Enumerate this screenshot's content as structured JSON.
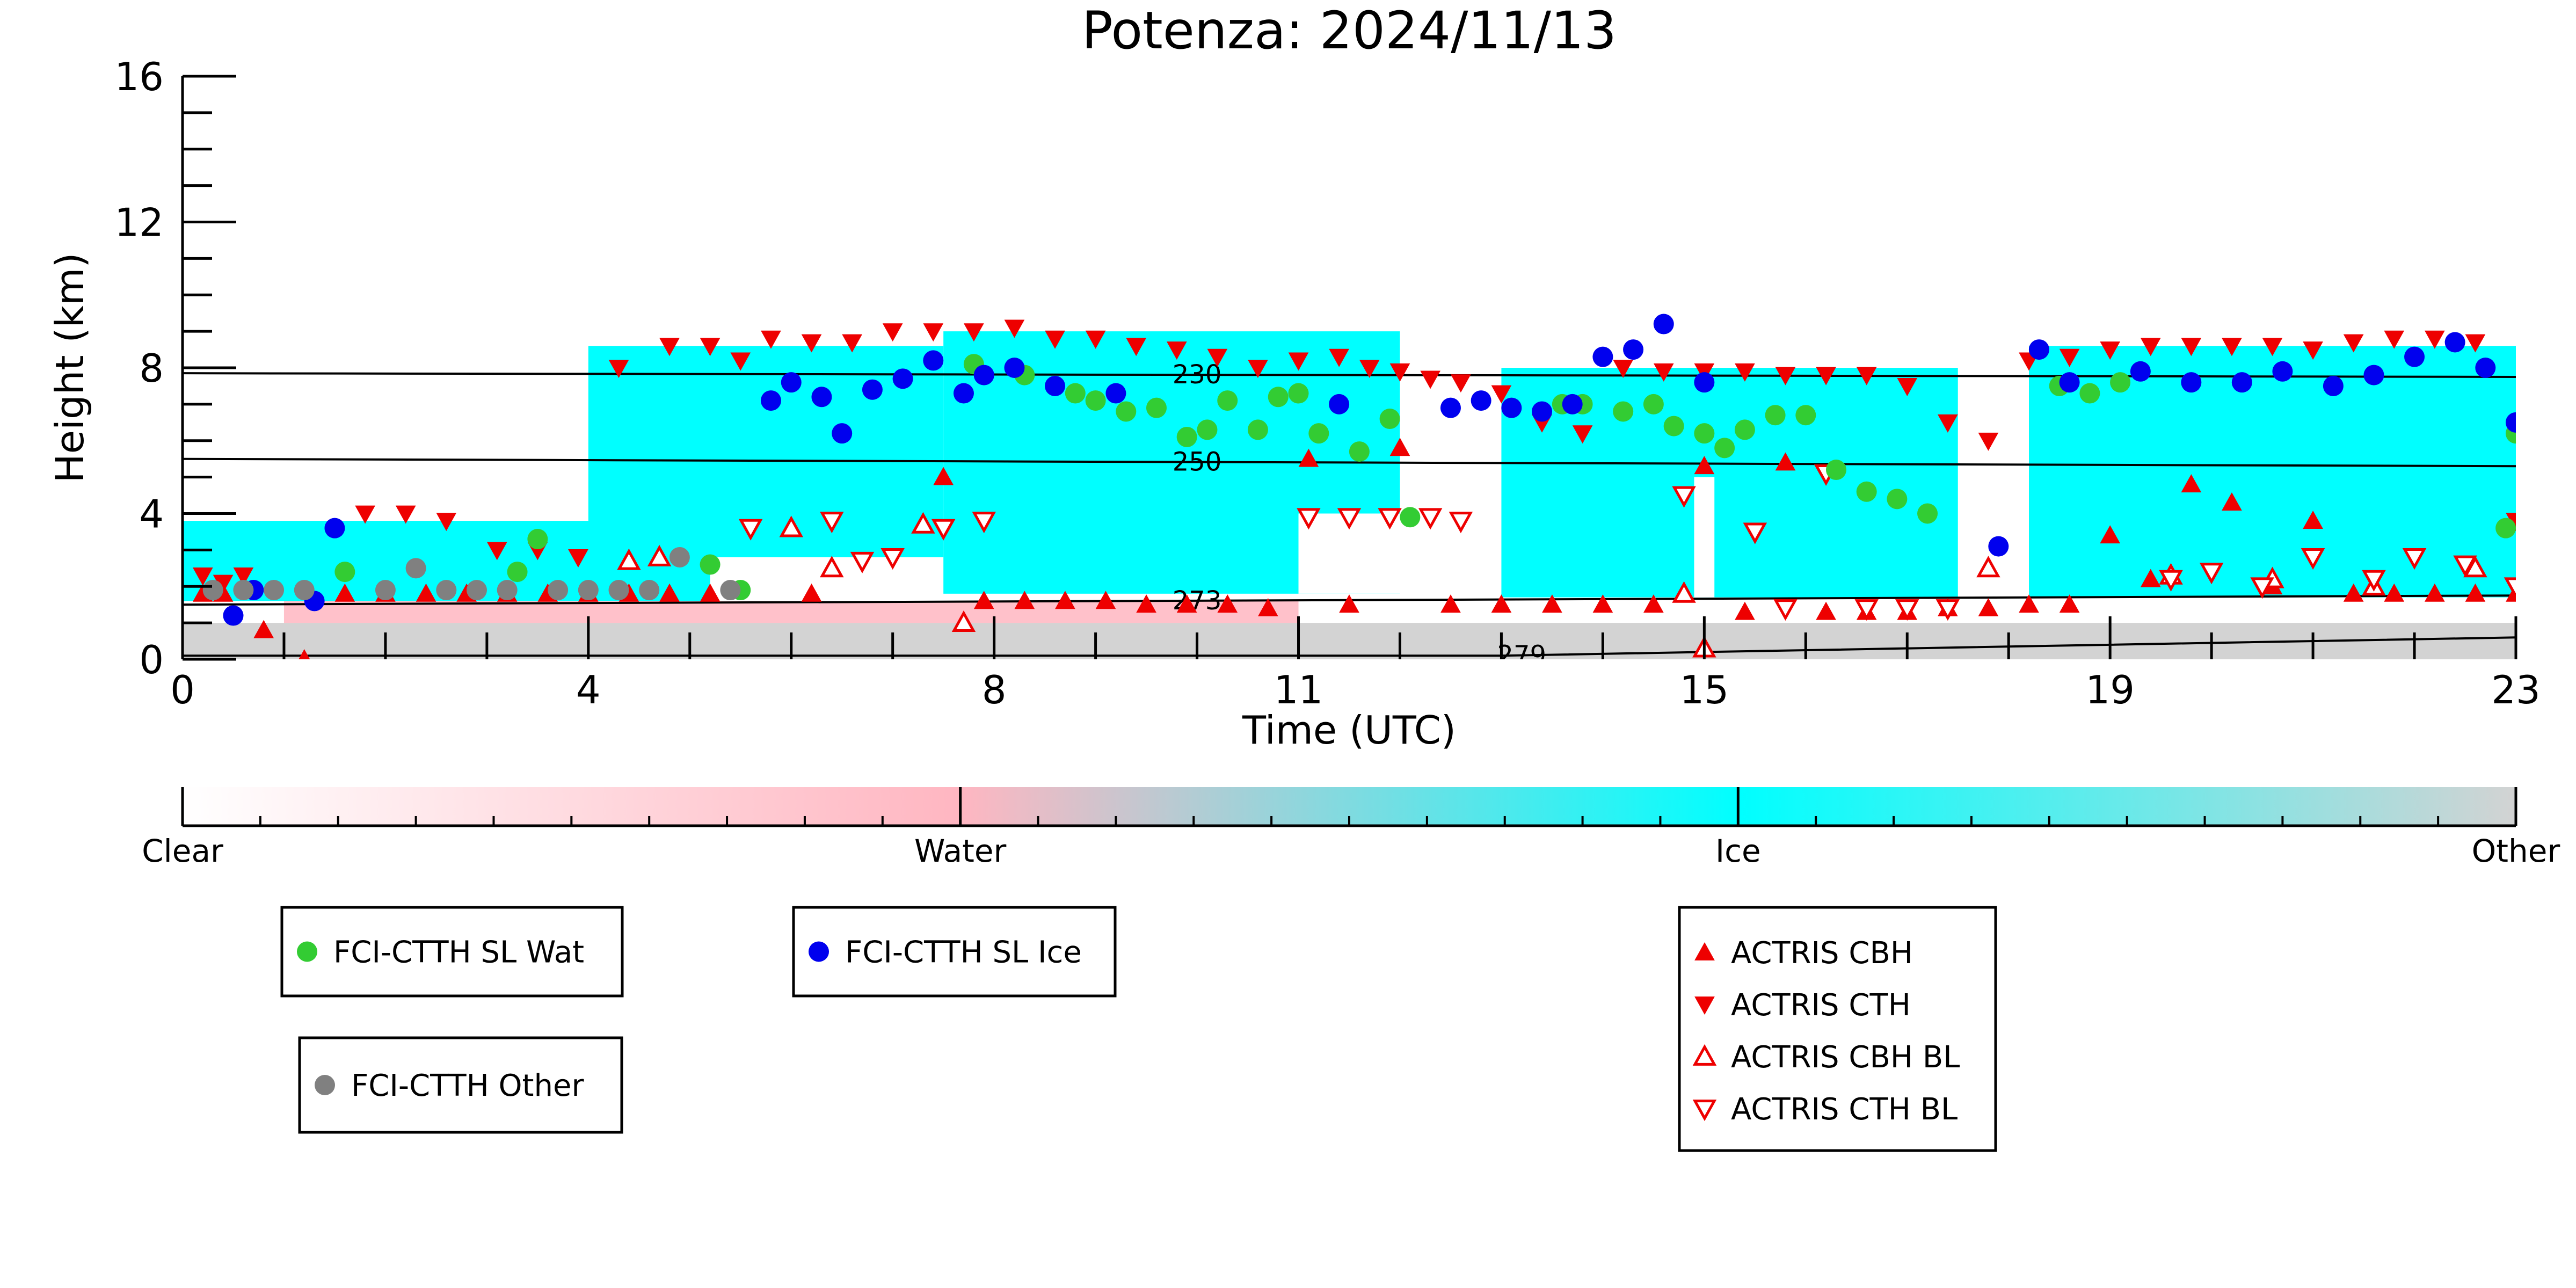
{
  "chart_data": {
    "type": "scatter",
    "title": "Potenza: 2024/11/13",
    "xlabel": "Time (UTC)",
    "ylabel": "Height (km)",
    "xlim": [
      0,
      23
    ],
    "ylim": [
      0,
      16
    ],
    "xticks": [
      0,
      4,
      8,
      11,
      15,
      19,
      23
    ],
    "yticks": [
      0,
      4,
      8,
      12,
      16
    ],
    "grid": false,
    "background_classification": {
      "description_colorbar": [
        "Clear",
        "Water",
        "Ice",
        "Other"
      ],
      "colors": {
        "Clear": "#ffffff",
        "Water": "#ffb6c1",
        "Ice": "#00ffff",
        "Other": "#d3d3d3"
      },
      "ice_regions": [
        {
          "x": [
            0.0,
            5.2
          ],
          "bottom": 1.6,
          "top": 3.8
        },
        {
          "x": [
            4.0,
            7.5
          ],
          "bottom": 2.8,
          "top": 8.6
        },
        {
          "x": [
            7.5,
            12.0
          ],
          "bottom": 1.8,
          "top": 9.0
        },
        {
          "x": [
            13.0,
            17.5
          ],
          "bottom": 1.7,
          "top": 8.0
        },
        {
          "x": [
            18.2,
            23.0
          ],
          "bottom": 1.7,
          "top": 8.6
        }
      ]
    },
    "temperature_contours": [
      {
        "label": "230",
        "x": [
          0,
          23
        ],
        "y": [
          7.85,
          7.75
        ]
      },
      {
        "label": "250",
        "x": [
          0,
          23
        ],
        "y": [
          5.5,
          5.3
        ]
      },
      {
        "label": "273",
        "x": [
          0,
          23
        ],
        "y": [
          1.5,
          1.75
        ]
      },
      {
        "label": "279",
        "x": [
          0,
          13,
          23
        ],
        "y": [
          0.1,
          0.1,
          0.6
        ]
      }
    ],
    "series": [
      {
        "name": "FCI-CTTH SL Wat",
        "color": "#33cc33",
        "marker": "circle",
        "x": [
          1.6,
          3.3,
          3.5,
          5.2,
          5.5,
          7.8,
          8.3,
          8.8,
          9.0,
          9.3,
          9.6,
          9.9,
          10.1,
          10.3,
          10.6,
          10.8,
          11.0,
          11.2,
          11.6,
          11.9,
          12.1,
          13.6,
          13.8,
          14.2,
          14.5,
          14.7,
          15.0,
          15.2,
          15.4,
          15.7,
          16.0,
          16.3,
          16.6,
          16.9,
          17.2,
          18.5,
          18.8,
          19.1,
          22.9,
          23.0
        ],
        "y": [
          2.4,
          2.4,
          3.3,
          2.6,
          1.9,
          8.1,
          7.8,
          7.3,
          7.1,
          6.8,
          6.9,
          6.1,
          6.3,
          7.1,
          6.3,
          7.2,
          7.3,
          6.2,
          5.7,
          6.6,
          3.9,
          7.0,
          7.0,
          6.8,
          7.0,
          6.4,
          6.2,
          5.8,
          6.3,
          6.7,
          6.7,
          5.2,
          4.6,
          4.4,
          4.0,
          7.5,
          7.3,
          7.6,
          3.6,
          6.2
        ]
      },
      {
        "name": "FCI-CTTH SL Ice",
        "color": "#0000ee",
        "marker": "circle",
        "x": [
          0.5,
          0.7,
          1.3,
          1.5,
          5.8,
          6.0,
          6.3,
          6.5,
          6.8,
          7.1,
          7.4,
          7.7,
          7.9,
          8.2,
          8.6,
          9.2,
          11.4,
          12.5,
          12.8,
          13.1,
          13.4,
          13.7,
          14.0,
          14.3,
          14.6,
          15.0,
          17.9,
          18.3,
          18.6,
          19.3,
          19.8,
          20.3,
          20.7,
          21.2,
          21.6,
          22.0,
          22.4,
          22.7,
          23.0
        ],
        "y": [
          1.2,
          1.9,
          1.6,
          3.6,
          7.1,
          7.6,
          7.2,
          6.2,
          7.4,
          7.7,
          8.2,
          7.3,
          7.8,
          8.0,
          7.5,
          7.3,
          7.0,
          6.9,
          7.1,
          6.9,
          6.8,
          7.0,
          8.3,
          8.5,
          9.2,
          7.6,
          3.1,
          8.5,
          7.6,
          7.9,
          7.6,
          7.6,
          7.9,
          7.5,
          7.8,
          8.3,
          8.7,
          8.0,
          6.5
        ]
      },
      {
        "name": "FCI-CTTH Other",
        "color": "#808080",
        "marker": "circle",
        "x": [
          0.3,
          0.6,
          0.9,
          1.2,
          2.0,
          2.3,
          2.6,
          2.9,
          3.2,
          3.7,
          4.0,
          4.3,
          4.6,
          4.9,
          5.4
        ],
        "y": [
          1.9,
          1.9,
          1.9,
          1.9,
          1.9,
          2.5,
          1.9,
          1.9,
          1.9,
          1.9,
          1.9,
          1.9,
          1.9,
          2.8,
          1.9
        ]
      },
      {
        "name": "ACTRIS CBH",
        "color": "#ee0000",
        "marker": "triangle-up",
        "x": [
          0.2,
          0.4,
          0.8,
          1.2,
          1.6,
          2.0,
          2.4,
          2.8,
          3.2,
          3.6,
          4.0,
          4.4,
          4.8,
          5.2,
          6.2,
          7.5,
          7.9,
          8.3,
          8.7,
          9.1,
          9.5,
          9.9,
          10.3,
          10.7,
          11.1,
          11.5,
          12.0,
          12.5,
          13.0,
          13.5,
          14.0,
          14.5,
          15.0,
          15.4,
          15.8,
          16.2,
          16.6,
          17.0,
          17.4,
          17.8,
          18.2,
          18.6,
          19.0,
          19.4,
          19.8,
          20.2,
          20.6,
          21.0,
          21.4,
          21.8,
          22.2,
          22.6,
          23.0
        ],
        "y": [
          1.8,
          1.8,
          0.8,
          0.0,
          1.8,
          1.8,
          1.8,
          1.8,
          1.8,
          1.8,
          1.8,
          1.8,
          1.8,
          1.8,
          1.8,
          5.0,
          1.6,
          1.6,
          1.6,
          1.6,
          1.5,
          1.5,
          1.5,
          1.4,
          5.5,
          1.5,
          5.8,
          1.5,
          1.5,
          1.5,
          1.5,
          1.5,
          5.3,
          1.3,
          5.4,
          1.3,
          1.3,
          1.3,
          1.4,
          1.4,
          1.5,
          1.5,
          3.4,
          2.2,
          4.8,
          4.3,
          2.0,
          3.8,
          1.8,
          1.8,
          1.8,
          1.8,
          1.8
        ]
      },
      {
        "name": "ACTRIS CTH",
        "color": "#ee0000",
        "marker": "triangle-down",
        "x": [
          0.2,
          0.4,
          0.6,
          1.8,
          2.2,
          2.6,
          3.1,
          3.5,
          3.9,
          4.3,
          4.8,
          5.2,
          5.5,
          5.8,
          6.2,
          6.6,
          7.0,
          7.4,
          7.8,
          8.2,
          8.6,
          9.0,
          9.4,
          9.8,
          10.2,
          10.6,
          11.0,
          11.4,
          11.7,
          12.0,
          12.3,
          12.6,
          13.0,
          13.4,
          13.8,
          14.2,
          14.6,
          15.0,
          15.4,
          15.8,
          16.2,
          16.6,
          17.0,
          17.4,
          17.8,
          18.2,
          18.6,
          19.0,
          19.4,
          19.8,
          20.2,
          20.6,
          21.0,
          21.4,
          21.8,
          22.2,
          22.6,
          23.0
        ],
        "y": [
          2.3,
          2.1,
          2.3,
          4.0,
          4.0,
          3.8,
          3.0,
          3.0,
          2.8,
          8.0,
          8.6,
          8.6,
          8.2,
          8.8,
          8.7,
          8.7,
          9.0,
          9.0,
          9.0,
          9.1,
          8.8,
          8.8,
          8.6,
          8.5,
          8.3,
          8.0,
          8.2,
          8.3,
          8.0,
          7.9,
          7.7,
          7.6,
          7.3,
          6.5,
          6.2,
          8.0,
          7.9,
          7.9,
          7.9,
          7.8,
          7.8,
          7.8,
          7.5,
          6.5,
          6.0,
          8.2,
          8.3,
          8.5,
          8.6,
          8.6,
          8.6,
          8.6,
          8.5,
          8.7,
          8.8,
          8.8,
          8.7,
          3.8
        ]
      },
      {
        "name": "ACTRIS CBH BL",
        "color": "#ee0000",
        "marker": "triangle-up-open",
        "x": [
          4.4,
          4.7,
          6.0,
          6.4,
          7.3,
          7.7,
          14.8,
          15.0,
          17.8,
          19.6,
          20.6,
          21.6,
          22.6
        ],
        "y": [
          2.7,
          2.8,
          3.6,
          2.5,
          3.7,
          1.0,
          1.8,
          0.3,
          2.5,
          2.3,
          2.2,
          2.0,
          2.5
        ]
      },
      {
        "name": "ACTRIS CTH BL",
        "color": "#ee0000",
        "marker": "triangle-down-open",
        "x": [
          5.6,
          6.4,
          6.7,
          7.0,
          7.5,
          7.9,
          11.1,
          11.5,
          11.9,
          12.3,
          12.6,
          14.8,
          15.5,
          15.8,
          16.2,
          16.6,
          17.0,
          17.4,
          19.6,
          20.0,
          20.5,
          21.0,
          21.6,
          22.0,
          22.5,
          23.0
        ],
        "y": [
          3.6,
          3.8,
          2.7,
          2.8,
          3.6,
          3.8,
          3.9,
          3.9,
          3.9,
          3.9,
          3.8,
          4.5,
          3.5,
          1.4,
          5.1,
          1.4,
          1.4,
          1.4,
          2.2,
          2.4,
          2.0,
          2.8,
          2.2,
          2.8,
          2.6,
          2.0
        ]
      }
    ],
    "colorbar": {
      "ticks": [
        "Clear",
        "Water",
        "Ice",
        "Other"
      ]
    },
    "legends": [
      {
        "entries": [
          "FCI-CTTH SL Wat"
        ]
      },
      {
        "entries": [
          "FCI-CTTH SL Ice"
        ]
      },
      {
        "entries": [
          "FCI-CTTH Other"
        ]
      },
      {
        "entries": [
          "ACTRIS CBH",
          "ACTRIS CTH",
          "ACTRIS CBH BL",
          "ACTRIS CTH BL"
        ]
      }
    ]
  }
}
